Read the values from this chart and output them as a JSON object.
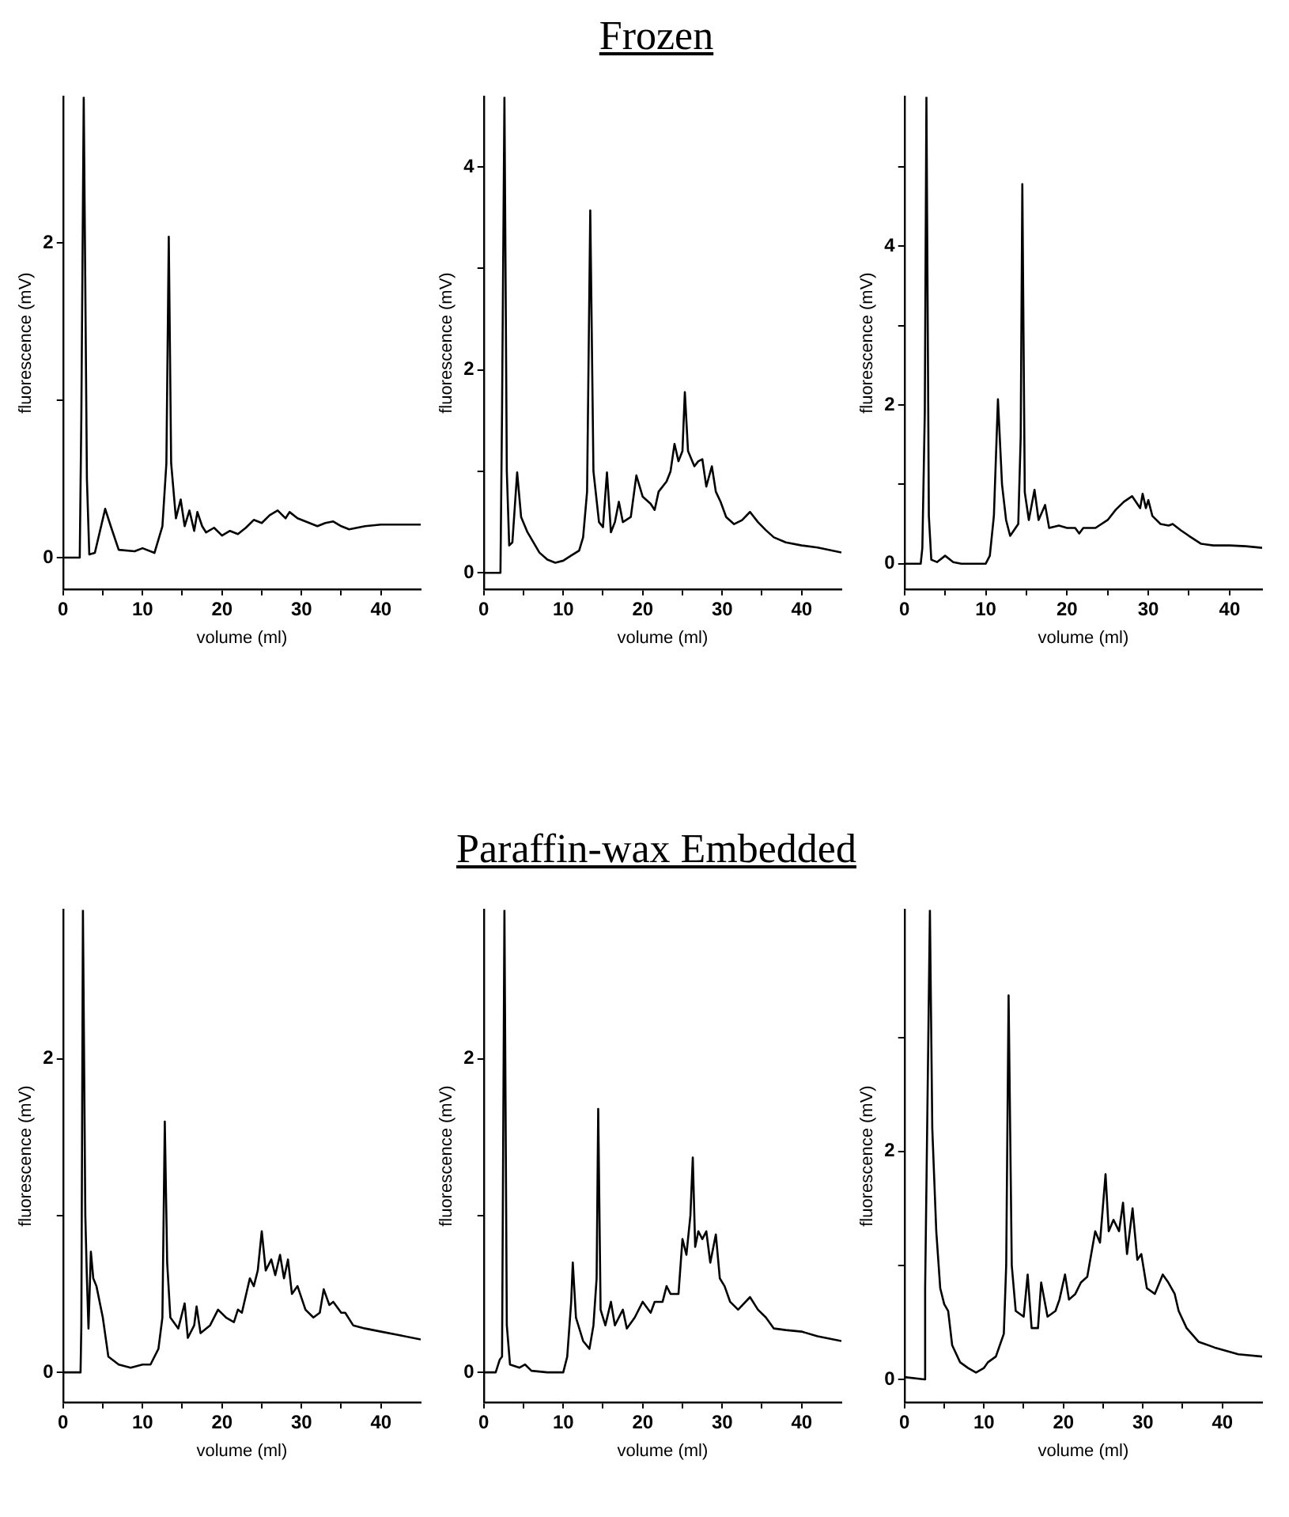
{
  "chart_data": [
    {
      "type": "line",
      "xlabel": "volume (ml)",
      "ylabel": "fluorescence (mV)",
      "color": "#000000",
      "marker": "none",
      "line_style": "solid",
      "xlim": [
        0,
        45
      ],
      "ylim": [
        -0.2,
        2.93
      ],
      "xticks": [
        0,
        {
          "value": 5,
          "label": null
        },
        10,
        {
          "value": 15,
          "label": null
        },
        20,
        {
          "value": 25,
          "label": null
        },
        30,
        {
          "value": 35,
          "label": null
        },
        40
      ],
      "yticks": [
        0,
        {
          "value": 1,
          "label": null
        },
        2
      ],
      "x": [
        0,
        2.1,
        2.3,
        2.6,
        3.0,
        3.3,
        4,
        5.3,
        6,
        7,
        9,
        10,
        11.5,
        12.5,
        13,
        13.3,
        13.6,
        14.2,
        14.8,
        15.3,
        15.9,
        16.5,
        16.9,
        17.5,
        18,
        19,
        20,
        21,
        22,
        23,
        24,
        25,
        26,
        27,
        28,
        28.5,
        29.5,
        31,
        32,
        33,
        34,
        35,
        36,
        38,
        40,
        42,
        45
      ],
      "values": [
        0,
        0,
        0.9,
        2.93,
        0.5,
        0.02,
        0.03,
        0.31,
        0.2,
        0.05,
        0.04,
        0.06,
        0.03,
        0.2,
        0.6,
        2.04,
        0.6,
        0.25,
        0.37,
        0.2,
        0.3,
        0.17,
        0.29,
        0.2,
        0.16,
        0.19,
        0.14,
        0.17,
        0.15,
        0.19,
        0.24,
        0.22,
        0.27,
        0.3,
        0.25,
        0.29,
        0.25,
        0.22,
        0.2,
        0.22,
        0.23,
        0.2,
        0.18,
        0.2,
        0.21,
        0.21,
        0.21
      ]
    },
    {
      "type": "line",
      "title": "Frozen",
      "xlabel": "volume (ml)",
      "ylabel": "fluorescence (mV)",
      "color": "#000000",
      "marker": "none",
      "line_style": "solid",
      "xlim": [
        0,
        45
      ],
      "ylim": [
        -0.16,
        4.69
      ],
      "xticks": [
        0,
        {
          "value": 5,
          "label": null
        },
        10,
        {
          "value": 15,
          "label": null
        },
        20,
        {
          "value": 25,
          "label": null
        },
        30,
        {
          "value": 35,
          "label": null
        },
        40
      ],
      "yticks": [
        0,
        {
          "value": 1,
          "label": null
        },
        2,
        {
          "value": 3,
          "label": null
        },
        4
      ],
      "x": [
        0,
        2.1,
        2.3,
        2.6,
        2.9,
        3.2,
        3.6,
        4.2,
        4.7,
        5.5,
        7,
        8,
        9,
        10,
        11,
        12,
        12.5,
        13,
        13.4,
        13.8,
        14.5,
        15,
        15.5,
        16,
        16.5,
        17,
        17.5,
        18.5,
        19.2,
        20,
        21,
        21.5,
        22,
        23,
        23.5,
        24,
        24.5,
        25,
        25.3,
        25.7,
        26.5,
        27,
        27.5,
        28,
        28.7,
        29.2,
        29.8,
        30.5,
        31.5,
        32.5,
        33.5,
        34.5,
        35.5,
        36.5,
        38,
        40,
        42,
        45
      ],
      "values": [
        0,
        0,
        1.6,
        4.69,
        1.0,
        0.27,
        0.3,
        0.99,
        0.55,
        0.4,
        0.2,
        0.13,
        0.1,
        0.12,
        0.17,
        0.22,
        0.35,
        0.8,
        3.57,
        1.0,
        0.5,
        0.45,
        0.99,
        0.4,
        0.5,
        0.7,
        0.5,
        0.55,
        0.96,
        0.75,
        0.68,
        0.62,
        0.8,
        0.9,
        1.0,
        1.27,
        1.1,
        1.2,
        1.78,
        1.2,
        1.05,
        1.1,
        1.12,
        0.85,
        1.05,
        0.8,
        0.7,
        0.55,
        0.48,
        0.52,
        0.6,
        0.5,
        0.42,
        0.35,
        0.3,
        0.27,
        0.25,
        0.2
      ]
    },
    {
      "type": "line",
      "xlabel": "volume (ml)",
      "ylabel": "fluorescence (mV)",
      "color": "#000000",
      "marker": "none",
      "line_style": "solid",
      "xlim": [
        0,
        44
      ],
      "ylim": [
        -0.32,
        5.88
      ],
      "xticks": [
        0,
        {
          "value": 5,
          "label": null
        },
        10,
        {
          "value": 15,
          "label": null
        },
        20,
        {
          "value": 25,
          "label": null
        },
        30,
        {
          "value": 35,
          "label": null
        },
        40
      ],
      "yticks": [
        0,
        {
          "value": 1,
          "label": null
        },
        2,
        {
          "value": 3,
          "label": null
        },
        4,
        {
          "value": 5,
          "label": null
        }
      ],
      "x": [
        0,
        2,
        2.2,
        2.5,
        2.7,
        3.0,
        3.3,
        4,
        5,
        6,
        7,
        9,
        10,
        10.5,
        11,
        11.5,
        12,
        12.5,
        13,
        14,
        14.3,
        14.5,
        14.8,
        15.3,
        16,
        16.5,
        17.3,
        17.8,
        19,
        20,
        21,
        21.5,
        22,
        23.5,
        25,
        26,
        27,
        28,
        29,
        29.3,
        29.7,
        30,
        30.5,
        31.5,
        32.5,
        33,
        34,
        35,
        36.5,
        38,
        40,
        42,
        44
      ],
      "values": [
        0,
        0,
        0.2,
        1.9,
        5.88,
        0.6,
        0.05,
        0.02,
        0.1,
        0.02,
        0,
        0,
        0,
        0.1,
        0.6,
        2.07,
        1.0,
        0.55,
        0.35,
        0.5,
        1.6,
        4.78,
        0.9,
        0.55,
        0.93,
        0.55,
        0.74,
        0.45,
        0.48,
        0.45,
        0.45,
        0.38,
        0.45,
        0.45,
        0.55,
        0.68,
        0.78,
        0.85,
        0.7,
        0.88,
        0.7,
        0.8,
        0.6,
        0.5,
        0.48,
        0.5,
        0.42,
        0.35,
        0.25,
        0.23,
        0.23,
        0.22,
        0.2
      ]
    },
    {
      "type": "line",
      "xlabel": "volume (ml)",
      "ylabel": "fluorescence (mV)",
      "color": "#000000",
      "marker": "none",
      "line_style": "solid",
      "xlim": [
        0,
        45
      ],
      "ylim": [
        -0.19,
        2.95
      ],
      "xticks": [
        0,
        {
          "value": 5,
          "label": null
        },
        10,
        {
          "value": 15,
          "label": null
        },
        20,
        {
          "value": 25,
          "label": null
        },
        30,
        {
          "value": 35,
          "label": null
        },
        40
      ],
      "yticks": [
        0,
        {
          "value": 1,
          "label": null
        },
        2
      ],
      "x": [
        0,
        2.2,
        2.3,
        2.5,
        2.8,
        3.0,
        3.2,
        3.5,
        3.8,
        4.2,
        5,
        5.7,
        7,
        8.5,
        10,
        11,
        12,
        12.5,
        12.8,
        13.1,
        13.5,
        14.5,
        15.3,
        15.7,
        16.5,
        16.8,
        17.3,
        18.5,
        19.5,
        20.5,
        21.5,
        22,
        22.5,
        23.5,
        24,
        24.5,
        25,
        25.5,
        26.2,
        26.7,
        27.3,
        27.8,
        28.3,
        28.8,
        29.5,
        30.5,
        31.5,
        32.3,
        32.8,
        33.5,
        34,
        35,
        35.5,
        36.5,
        38,
        40,
        42,
        45
      ],
      "values": [
        0,
        0,
        0.3,
        2.95,
        1.0,
        0.6,
        0.28,
        0.77,
        0.6,
        0.55,
        0.35,
        0.1,
        0.05,
        0.03,
        0.05,
        0.05,
        0.15,
        0.35,
        1.6,
        0.7,
        0.35,
        0.28,
        0.44,
        0.22,
        0.3,
        0.42,
        0.25,
        0.3,
        0.4,
        0.35,
        0.32,
        0.4,
        0.38,
        0.6,
        0.55,
        0.65,
        0.9,
        0.65,
        0.72,
        0.62,
        0.75,
        0.6,
        0.72,
        0.5,
        0.55,
        0.4,
        0.35,
        0.38,
        0.53,
        0.43,
        0.45,
        0.38,
        0.38,
        0.3,
        0.28,
        0.26,
        0.24,
        0.21
      ]
    },
    {
      "type": "line",
      "title": "Paraffin-wax Embedded",
      "xlabel": "volume (ml)",
      "ylabel": "fluorescence (mV)",
      "color": "#000000",
      "marker": "none",
      "line_style": "solid",
      "xlim": [
        0,
        45
      ],
      "ylim": [
        -0.19,
        2.95
      ],
      "xticks": [
        0,
        {
          "value": 5,
          "label": null
        },
        10,
        {
          "value": 15,
          "label": null
        },
        20,
        {
          "value": 25,
          "label": null
        },
        30,
        {
          "value": 35,
          "label": null
        },
        40
      ],
      "yticks": [
        0,
        {
          "value": 1,
          "label": null
        },
        2
      ],
      "x": [
        0,
        1.5,
        2,
        2.3,
        2.6,
        2.9,
        3.3,
        4.5,
        5.2,
        6,
        8,
        10,
        10.5,
        11,
        11.2,
        11.6,
        12.5,
        13.3,
        13.8,
        14.2,
        14.4,
        14.7,
        15.3,
        16,
        16.5,
        17.5,
        18,
        19,
        20,
        21,
        21.5,
        22.5,
        23,
        23.5,
        24.5,
        25,
        25.5,
        26,
        26.3,
        26.6,
        27,
        27.5,
        28,
        28.5,
        29.2,
        29.7,
        30.3,
        31,
        32,
        33.5,
        34.5,
        35.5,
        36.5,
        38,
        40,
        42,
        45
      ],
      "values": [
        0,
        0,
        0.08,
        0.1,
        2.95,
        0.3,
        0.05,
        0.03,
        0.05,
        0.01,
        0,
        0,
        0.1,
        0.45,
        0.7,
        0.35,
        0.2,
        0.15,
        0.3,
        0.6,
        1.68,
        0.4,
        0.3,
        0.45,
        0.3,
        0.4,
        0.28,
        0.35,
        0.45,
        0.38,
        0.45,
        0.45,
        0.55,
        0.5,
        0.5,
        0.85,
        0.75,
        1.0,
        1.37,
        0.8,
        0.9,
        0.85,
        0.9,
        0.7,
        0.88,
        0.6,
        0.55,
        0.45,
        0.4,
        0.48,
        0.4,
        0.35,
        0.28,
        0.27,
        0.26,
        0.23,
        0.2
      ]
    },
    {
      "type": "line",
      "xlabel": "volume (ml)",
      "ylabel": "fluorescence (mV)",
      "color": "#000000",
      "marker": "none",
      "line_style": "solid",
      "xlim": [
        0,
        45
      ],
      "ylim": [
        -0.2,
        4.12
      ],
      "xticks": [
        0,
        {
          "value": 5,
          "label": null
        },
        10,
        {
          "value": 15,
          "label": null
        },
        20,
        {
          "value": 25,
          "label": null
        },
        30,
        {
          "value": 35,
          "label": null
        },
        40
      ],
      "yticks": [
        0,
        {
          "value": 1,
          "label": null
        },
        2,
        {
          "value": 3,
          "label": null
        }
      ],
      "x": [
        0,
        2.5,
        2.6,
        3.0,
        3.2,
        3.5,
        4,
        4.5,
        5,
        5.5,
        6,
        7,
        8,
        9,
        10,
        10.5,
        11.5,
        12,
        12.5,
        12.8,
        13.1,
        13.5,
        14,
        15,
        15.5,
        16,
        16.8,
        17.2,
        18,
        19,
        19.5,
        20.2,
        20.7,
        21.5,
        22.2,
        23,
        24,
        24.6,
        25.3,
        25.7,
        26.3,
        27,
        27.5,
        28,
        28.7,
        29.3,
        29.8,
        30.5,
        31.5,
        32.5,
        33.2,
        34,
        34.5,
        35.5,
        37,
        39,
        42,
        45
      ],
      "values": [
        0.02,
        0,
        0.8,
        3.0,
        4.12,
        2.2,
        1.3,
        0.8,
        0.66,
        0.6,
        0.3,
        0.15,
        0.1,
        0.06,
        0.1,
        0.15,
        0.2,
        0.3,
        0.4,
        1.0,
        3.37,
        1.0,
        0.6,
        0.55,
        0.92,
        0.45,
        0.45,
        0.85,
        0.55,
        0.6,
        0.7,
        0.92,
        0.7,
        0.75,
        0.85,
        0.9,
        1.3,
        1.2,
        1.8,
        1.3,
        1.4,
        1.3,
        1.55,
        1.1,
        1.5,
        1.05,
        1.1,
        0.8,
        0.75,
        0.92,
        0.85,
        0.75,
        0.6,
        0.45,
        0.33,
        0.28,
        0.22,
        0.2
      ]
    }
  ]
}
